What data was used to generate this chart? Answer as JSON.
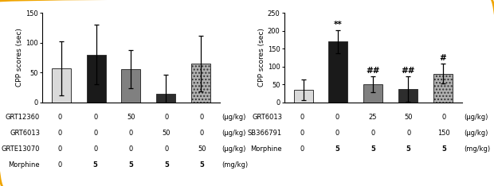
{
  "left": {
    "ylabel": "CPP scores (sec)",
    "ylim": [
      0,
      150
    ],
    "yticks": [
      0,
      50,
      100,
      150
    ],
    "bars": [
      {
        "value": 57,
        "err": 45,
        "color": "#d9d9d9",
        "hatch": null
      },
      {
        "value": 80,
        "err": 50,
        "color": "#1a1a1a",
        "hatch": null
      },
      {
        "value": 56,
        "err": 32,
        "color": "#808080",
        "hatch": null
      },
      {
        "value": 14,
        "err": 32,
        "color": "#2d2d2d",
        "hatch": null
      },
      {
        "value": 65,
        "err": 47,
        "color": "#b0b0b0",
        "hatch": "...."
      }
    ],
    "table_rows": [
      {
        "label": "GRT12360",
        "unit": "(μg/kg)",
        "values": [
          "0",
          "0",
          "50",
          "0",
          "0"
        ]
      },
      {
        "label": "GRT6013",
        "unit": "(μg/kg)",
        "values": [
          "0",
          "0",
          "0",
          "50",
          "0"
        ]
      },
      {
        "label": "GRTE13070",
        "unit": "(μg/kg)",
        "values": [
          "0",
          "0",
          "0",
          "0",
          "50"
        ]
      },
      {
        "label": "Morphine",
        "unit": "(mg/kg)",
        "values": [
          "0",
          "5",
          "5",
          "5",
          "5"
        ]
      }
    ]
  },
  "right": {
    "ylabel": "CPP scores (sec)",
    "ylim": [
      0,
      250
    ],
    "yticks": [
      0,
      50,
      100,
      150,
      200,
      250
    ],
    "bars": [
      {
        "value": 35,
        "err": 28,
        "color": "#d9d9d9",
        "hatch": null,
        "sig": null
      },
      {
        "value": 170,
        "err": 32,
        "color": "#1a1a1a",
        "hatch": null,
        "sig": "**"
      },
      {
        "value": 50,
        "err": 22,
        "color": "#808080",
        "hatch": null,
        "sig": "##"
      },
      {
        "value": 37,
        "err": 35,
        "color": "#2d2d2d",
        "hatch": null,
        "sig": "##"
      },
      {
        "value": 80,
        "err": 28,
        "color": "#b0b0b0",
        "hatch": "....",
        "sig": "#"
      }
    ],
    "table_rows": [
      {
        "label": "GRT6013",
        "unit": "(μg/kg)",
        "values": [
          "0",
          "0",
          "25",
          "50",
          "0"
        ]
      },
      {
        "label": "SB366791",
        "unit": "(μg/kg)",
        "values": [
          "0",
          "0",
          "0",
          "0",
          "150"
        ]
      },
      {
        "label": "Morphine",
        "unit": "(mg/kg)",
        "values": [
          "0",
          "5",
          "5",
          "5",
          "5"
        ]
      }
    ]
  },
  "border_color": "#f0a500",
  "background_color": "#ffffff",
  "fontsize_ylabel": 6.5,
  "fontsize_tick": 6,
  "fontsize_table": 6,
  "fontsize_sig": 7.5
}
